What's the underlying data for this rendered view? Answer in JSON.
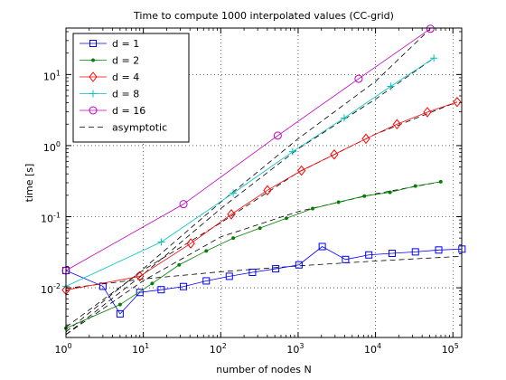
{
  "chart_data": {
    "type": "line",
    "title": "Time to compute 1000 interpolated values (CC-grid)",
    "xlabel": "number of nodes N",
    "ylabel": "time [s]",
    "xscale": "log",
    "yscale": "log",
    "xlim": [
      1,
      130000
    ],
    "ylim": [
      0.002,
      45
    ],
    "grid": true,
    "legend": "top-left",
    "x_ticks": [
      {
        "v": 1,
        "base": "10",
        "exp": "0"
      },
      {
        "v": 10,
        "base": "10",
        "exp": "1"
      },
      {
        "v": 100,
        "base": "10",
        "exp": "2"
      },
      {
        "v": 1000,
        "base": "10",
        "exp": "3"
      },
      {
        "v": 10000,
        "base": "10",
        "exp": "4"
      },
      {
        "v": 100000,
        "base": "10",
        "exp": "5"
      }
    ],
    "y_ticks": [
      {
        "v": 0.01,
        "base": "10",
        "exp": "-2"
      },
      {
        "v": 0.1,
        "base": "10",
        "exp": "-1"
      },
      {
        "v": 1,
        "base": "10",
        "exp": "0"
      },
      {
        "v": 10,
        "base": "10",
        "exp": "1"
      }
    ],
    "series": [
      {
        "name": "d = 1",
        "color": "#0000ff",
        "marker": "square",
        "x": [
          1,
          3,
          5,
          9,
          17,
          33,
          65,
          129,
          257,
          513,
          1025,
          2049,
          4097,
          8193,
          16385,
          32769,
          65537,
          131073
        ],
        "y": [
          0.0175,
          0.0105,
          0.0043,
          0.0086,
          0.0094,
          0.0104,
          0.0125,
          0.0145,
          0.0165,
          0.0185,
          0.021,
          0.038,
          0.025,
          0.029,
          0.0305,
          0.032,
          0.034,
          0.035
        ]
      },
      {
        "name": "d = 2",
        "color": "#008000",
        "marker": "dot",
        "x": [
          1,
          5,
          13,
          29,
          65,
          145,
          321,
          705,
          1537,
          3329,
          7169,
          15361,
          32769,
          69633
        ],
        "y": [
          0.0027,
          0.0058,
          0.0115,
          0.021,
          0.033,
          0.05,
          0.069,
          0.095,
          0.13,
          0.16,
          0.195,
          0.22,
          0.27,
          0.31
        ]
      },
      {
        "name": "d = 4",
        "color": "#ff0000",
        "marker": "diamond",
        "x": [
          1,
          9,
          41,
          137,
          401,
          1105,
          2929,
          7537,
          18945,
          46721,
          113409
        ],
        "y": [
          0.0093,
          0.0145,
          0.042,
          0.108,
          0.235,
          0.445,
          0.75,
          1.25,
          2.0,
          2.95,
          4.1
        ]
      },
      {
        "name": "d = 8",
        "color": "#00c0c0",
        "marker": "plus",
        "x": [
          1,
          17,
          145,
          849,
          3937,
          15713,
          56737
        ],
        "y": [
          0.0105,
          0.044,
          0.215,
          0.82,
          2.45,
          6.8,
          17.0
        ]
      },
      {
        "name": "d = 16",
        "color": "#c000c0",
        "marker": "circle",
        "x": [
          1,
          33,
          545,
          6049,
          51137
        ],
        "y": [
          0.0175,
          0.15,
          1.38,
          8.7,
          44.0
        ]
      },
      {
        "name": "asymptotic",
        "color": "#000000",
        "marker": "none",
        "dash": true
      }
    ],
    "asymptotic_curves": [
      {
        "x": [
          1,
          10,
          100,
          1000,
          10000,
          130000
        ],
        "y": [
          0.0098,
          0.0133,
          0.0168,
          0.0203,
          0.0238,
          0.0277
        ]
      },
      {
        "x": [
          1,
          10,
          100,
          1000,
          10000,
          70000
        ],
        "y": [
          0.0022,
          0.0126,
          0.052,
          0.118,
          0.21,
          0.31
        ]
      },
      {
        "x": [
          1,
          10,
          100,
          1000,
          10000,
          113409
        ],
        "y": [
          0.0028,
          0.0178,
          0.082,
          0.42,
          1.45,
          4.1
        ]
      },
      {
        "x": [
          1,
          10,
          100,
          1000,
          10000,
          56737
        ],
        "y": [
          0.0022,
          0.0155,
          0.13,
          0.9,
          4.5,
          17.0
        ]
      },
      {
        "x": [
          1,
          10,
          100,
          1000,
          10000,
          51137
        ],
        "y": [
          0.0024,
          0.0185,
          0.16,
          1.25,
          8.0,
          44.0
        ]
      }
    ]
  }
}
